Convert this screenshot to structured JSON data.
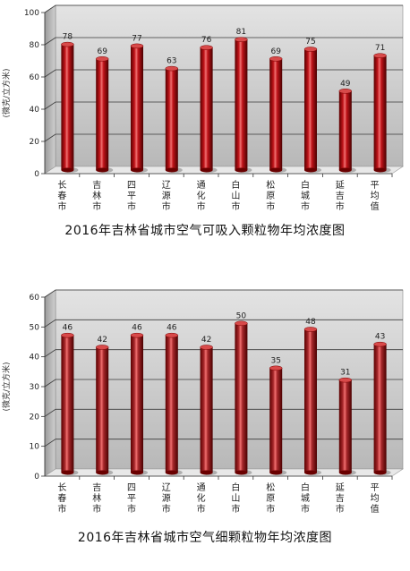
{
  "chart_data": [
    {
      "type": "bar",
      "title": "2016年吉林省城市空气可吸入颗粒物年均浓度图",
      "ylabel": "(微克/立方米)",
      "ylim": [
        0,
        100
      ],
      "yticks": [
        0,
        20,
        40,
        60,
        80,
        100
      ],
      "categories": [
        "长春市",
        "吉林市",
        "四平市",
        "辽源市",
        "通化市",
        "白山市",
        "松原市",
        "白城市",
        "延吉市",
        "平均值"
      ],
      "values": [
        78,
        69,
        77,
        63,
        76,
        81,
        69,
        75,
        49,
        71
      ],
      "bar_color": "#c0141a",
      "grid": true
    },
    {
      "type": "bar",
      "title": "2016年吉林省城市空气细颗粒物年均浓度图",
      "ylabel": "(微克/立方米)",
      "ylim": [
        0,
        60
      ],
      "yticks": [
        0,
        10,
        20,
        30,
        40,
        50,
        60
      ],
      "categories": [
        "长春市",
        "吉林市",
        "四平市",
        "辽源市",
        "通化市",
        "白山市",
        "松原市",
        "白城市",
        "延吉市",
        "平均值"
      ],
      "values": [
        46,
        42,
        46,
        46,
        42,
        50,
        35,
        48,
        31,
        43
      ],
      "bar_color": "#a8292c",
      "grid": true
    }
  ]
}
